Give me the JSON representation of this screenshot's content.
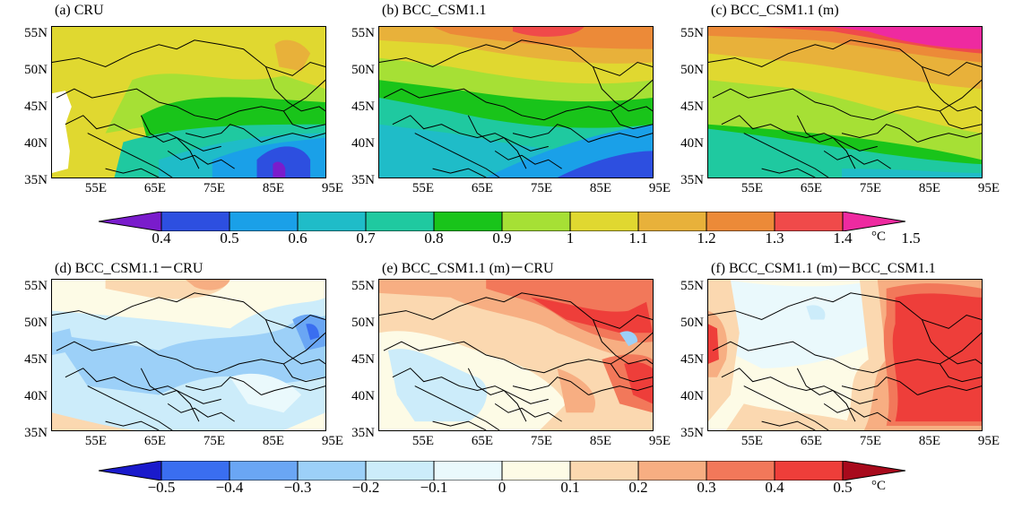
{
  "panels": [
    {
      "id": "a",
      "title": "(a)  CRU"
    },
    {
      "id": "b",
      "title": "(b)  BCC_CSM1.1"
    },
    {
      "id": "c",
      "title": "(c)  BCC_CSM1.1 (m)"
    },
    {
      "id": "d",
      "title": "(d)  BCC_CSM1.1－CRU"
    },
    {
      "id": "e",
      "title": "(e)  BCC_CSM1.1 (m)－CRU"
    },
    {
      "id": "f",
      "title": "(f)  BCC_CSM1.1 (m)－BCC_CSM1.1"
    }
  ],
  "lat_ticks": [
    "55N",
    "50N",
    "45N",
    "40N",
    "35N"
  ],
  "lon_ticks": [
    "55E",
    "65E",
    "75E",
    "85E",
    "95E"
  ],
  "colorbar_top": {
    "labels": [
      "0.4",
      "0.5",
      "0.6",
      "0.7",
      "0.8",
      "0.9",
      "1",
      "1.1",
      "1.2",
      "1.3",
      "1.4",
      "1.5"
    ],
    "unit": "°C",
    "colors": [
      "#7a1ccc",
      "#2d4fe0",
      "#1aa0e8",
      "#1fbcc8",
      "#1fc9a0",
      "#19c41a",
      "#a6e035",
      "#e0d830",
      "#e8b13a",
      "#ec8a38",
      "#f04a4a",
      "#ee2aa0"
    ]
  },
  "colorbar_bottom": {
    "labels": [
      "−0.5",
      "−0.4",
      "−0.3",
      "−0.2",
      "−0.1",
      "0",
      "0.1",
      "0.2",
      "0.3",
      "0.4",
      "0.5"
    ],
    "unit": "°C",
    "colors": [
      "#1a1acc",
      "#3a6ef0",
      "#6aa6f4",
      "#9cd0f8",
      "#ccecfa",
      "#eaf9fc",
      "#fdfbe6",
      "#fbd8b0",
      "#f7ae82",
      "#f2785a",
      "#ee3e3a",
      "#a80a1c"
    ]
  }
}
